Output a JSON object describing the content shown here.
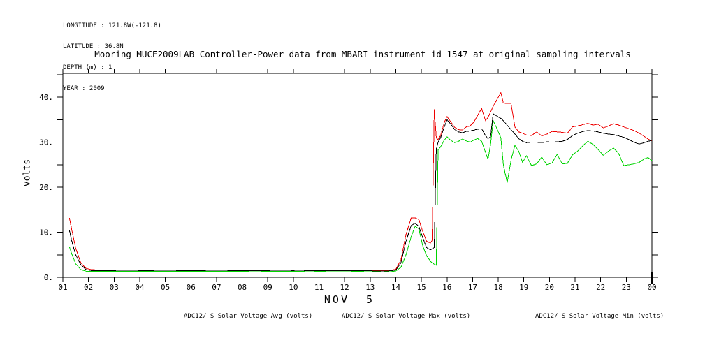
{
  "meta": {
    "lines": [
      "LONGITUDE : 121.8W(-121.8)",
      "LATITUDE : 36.8N",
      "DEPTH (m) : 1",
      "YEAR : 2009"
    ]
  },
  "title": "Mooring MUCE2009LAB Controller-Power data from MBARI instrument id 1547 at original sampling intervals",
  "chart_data": {
    "type": "line",
    "title": "Mooring MUCE2009LAB Controller-Power data from MBARI instrument id 1547 at original sampling intervals",
    "xlabel": "NOV  5",
    "ylabel": "volts",
    "xlim": [
      1,
      24
    ],
    "ylim": [
      0,
      45.3
    ],
    "grid": false,
    "legend_position": "bottom",
    "axis_color": "#000000",
    "x_tick_labels": [
      "01",
      "02",
      "03",
      "04",
      "05",
      "06",
      "07",
      "08",
      "09",
      "10",
      "11",
      "12",
      "13",
      "14",
      "15",
      "16",
      "17",
      "18",
      "19",
      "20",
      "21",
      "22",
      "23",
      "00"
    ],
    "y_major_ticks": [
      0,
      10,
      20,
      30,
      40
    ],
    "y_major_labels": [
      "0.",
      "10.",
      "20.",
      "30.",
      "40."
    ],
    "y_minor_ticks": [
      5,
      15,
      25,
      35,
      45
    ],
    "x": [
      1.25,
      1.35,
      1.5,
      1.7,
      1.9,
      2.1,
      2.5,
      3.0,
      3.5,
      4.0,
      4.5,
      5.0,
      5.5,
      6.0,
      6.5,
      7.0,
      7.5,
      8.0,
      8.5,
      9.0,
      9.5,
      10.0,
      10.3,
      10.6,
      11.0,
      11.5,
      12.0,
      12.5,
      13.0,
      13.5,
      13.8,
      14.0,
      14.2,
      14.4,
      14.6,
      14.75,
      14.9,
      15.05,
      15.2,
      15.35,
      15.42,
      15.5,
      15.58,
      15.65,
      15.75,
      15.9,
      16.0,
      16.15,
      16.3,
      16.45,
      16.6,
      16.75,
      16.9,
      17.05,
      17.2,
      17.35,
      17.5,
      17.6,
      17.7,
      17.8,
      17.95,
      18.1,
      18.2,
      18.35,
      18.5,
      18.65,
      18.8,
      18.95,
      19.1,
      19.3,
      19.5,
      19.7,
      19.9,
      20.1,
      20.3,
      20.5,
      20.7,
      20.9,
      21.1,
      21.3,
      21.5,
      21.7,
      21.9,
      22.1,
      22.3,
      22.5,
      22.7,
      22.9,
      23.1,
      23.3,
      23.5,
      23.7,
      23.85,
      24.0
    ],
    "series": [
      {
        "name": "ADC12/ S Solar Voltage Avg (volts)",
        "color": "#000000",
        "values": [
          10.5,
          8.0,
          5.0,
          2.8,
          1.7,
          1.5,
          1.5,
          1.5,
          1.55,
          1.5,
          1.5,
          1.55,
          1.5,
          1.5,
          1.5,
          1.55,
          1.5,
          1.5,
          1.45,
          1.5,
          1.55,
          1.5,
          1.55,
          1.45,
          1.5,
          1.45,
          1.45,
          1.5,
          1.45,
          1.4,
          1.45,
          1.6,
          3.2,
          8.0,
          11.5,
          12.0,
          11.3,
          8.8,
          6.6,
          6.1,
          6.3,
          6.6,
          28.5,
          30.0,
          31.0,
          33.5,
          35.0,
          34.0,
          32.8,
          32.3,
          32.1,
          32.4,
          32.5,
          32.7,
          32.9,
          33.0,
          31.5,
          30.8,
          31.2,
          36.3,
          35.8,
          35.3,
          34.8,
          33.8,
          32.8,
          31.8,
          30.8,
          30.2,
          29.9,
          30.0,
          30.0,
          29.9,
          30.1,
          30.0,
          30.1,
          30.2,
          30.6,
          31.5,
          32.0,
          32.4,
          32.6,
          32.5,
          32.3,
          32.0,
          31.8,
          31.7,
          31.4,
          31.1,
          30.6,
          30.0,
          29.6,
          29.9,
          30.2,
          30.4
        ]
      },
      {
        "name": "ADC12/ S Solar Voltage Max (volts)",
        "color": "#ee0000",
        "values": [
          13.2,
          10.5,
          6.5,
          3.2,
          2.0,
          1.7,
          1.6,
          1.6,
          1.65,
          1.6,
          1.6,
          1.65,
          1.6,
          1.6,
          1.6,
          1.65,
          1.6,
          1.6,
          1.55,
          1.6,
          1.65,
          1.6,
          1.6,
          1.55,
          1.6,
          1.55,
          1.55,
          1.6,
          1.55,
          1.5,
          1.55,
          1.8,
          3.8,
          9.5,
          13.2,
          13.2,
          12.8,
          10.2,
          8.0,
          7.6,
          8.2,
          37.3,
          31.0,
          30.6,
          31.5,
          34.5,
          35.7,
          34.5,
          33.3,
          32.8,
          32.7,
          33.4,
          33.6,
          34.5,
          36.0,
          37.5,
          34.8,
          35.5,
          36.7,
          38.0,
          39.5,
          41.0,
          38.7,
          38.6,
          38.6,
          33.4,
          32.3,
          32.0,
          31.6,
          31.5,
          32.3,
          31.4,
          31.8,
          32.4,
          32.3,
          32.2,
          32.0,
          33.4,
          33.6,
          33.9,
          34.2,
          33.8,
          34.0,
          33.2,
          33.6,
          34.1,
          33.8,
          33.4,
          33.0,
          32.6,
          32.0,
          31.3,
          30.7,
          30.3
        ]
      },
      {
        "name": "ADC12/ S Solar Voltage Min (volts)",
        "color": "#00d400",
        "values": [
          6.8,
          5.2,
          3.0,
          1.7,
          1.35,
          1.3,
          1.3,
          1.3,
          1.35,
          1.3,
          1.3,
          1.35,
          1.3,
          1.3,
          1.3,
          1.35,
          1.3,
          1.3,
          1.25,
          1.3,
          1.35,
          1.3,
          1.3,
          1.25,
          1.3,
          1.25,
          1.25,
          1.3,
          1.25,
          1.2,
          1.25,
          1.4,
          2.2,
          5.0,
          9.0,
          11.3,
          10.8,
          7.0,
          4.8,
          3.6,
          3.2,
          2.9,
          2.7,
          28.3,
          29.0,
          30.5,
          31.2,
          30.4,
          29.9,
          30.2,
          30.7,
          30.3,
          30.0,
          30.5,
          30.8,
          30.2,
          27.8,
          26.2,
          29.5,
          34.8,
          33.0,
          31.0,
          25.0,
          21.0,
          26.0,
          29.3,
          28.0,
          25.5,
          27.0,
          24.8,
          25.2,
          26.7,
          25.0,
          25.4,
          27.3,
          25.2,
          25.3,
          27.2,
          28.0,
          29.2,
          30.2,
          29.5,
          28.4,
          27.1,
          28.0,
          28.7,
          27.5,
          24.8,
          25.0,
          25.2,
          25.5,
          26.3,
          26.6,
          25.9
        ]
      }
    ]
  }
}
